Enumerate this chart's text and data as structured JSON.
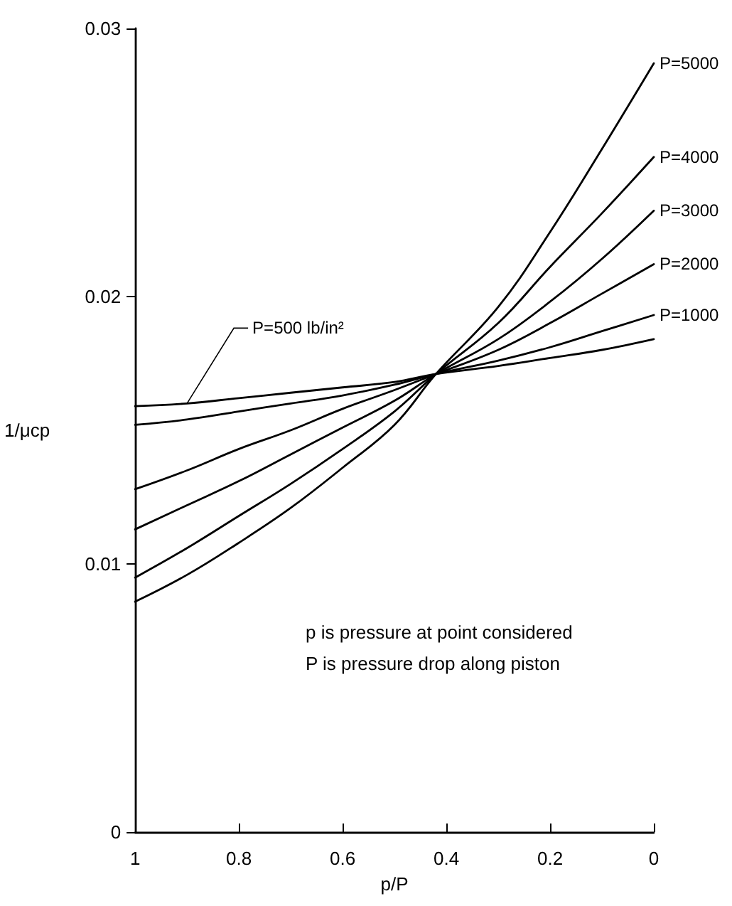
{
  "chart_data": {
    "type": "line",
    "xlabel": "p/P",
    "ylabel": "1/μcp",
    "x": [
      1,
      0.9,
      0.8,
      0.7,
      0.6,
      0.5,
      0.42,
      0.3,
      0.2,
      0.1,
      0
    ],
    "series": [
      {
        "name": "P=5000",
        "color": "#000000",
        "values": [
          0.0086,
          0.0096,
          0.0108,
          0.0121,
          0.0136,
          0.0152,
          0.0171,
          0.0196,
          0.0224,
          0.0255,
          0.0287
        ]
      },
      {
        "name": "P=4000",
        "color": "#000000",
        "values": [
          0.0095,
          0.0106,
          0.0118,
          0.013,
          0.0143,
          0.0157,
          0.0171,
          0.019,
          0.0211,
          0.0231,
          0.0252
        ]
      },
      {
        "name": "P=3000",
        "color": "#000000",
        "values": [
          0.0113,
          0.0122,
          0.0131,
          0.0141,
          0.0151,
          0.0161,
          0.0171,
          0.0184,
          0.0198,
          0.0214,
          0.0232
        ]
      },
      {
        "name": "P=2000",
        "color": "#000000",
        "values": [
          0.0128,
          0.0135,
          0.0143,
          0.015,
          0.0158,
          0.0165,
          0.0171,
          0.018,
          0.019,
          0.0201,
          0.0212
        ]
      },
      {
        "name": "P=1000",
        "color": "#000000",
        "values": [
          0.0152,
          0.0154,
          0.0157,
          0.016,
          0.0163,
          0.0167,
          0.0171,
          0.0176,
          0.0181,
          0.0187,
          0.0193
        ]
      },
      {
        "name": "P=500 lb/in²",
        "color": "#000000",
        "values": [
          0.0159,
          0.016,
          0.0162,
          0.0164,
          0.0166,
          0.0168,
          0.0171,
          0.0174,
          0.0177,
          0.018,
          0.0184
        ]
      }
    ],
    "xlim": [
      1,
      0
    ],
    "xticks": [
      {
        "value": 1,
        "label": "1"
      },
      0.8,
      0.6,
      0.4,
      0.2,
      {
        "value": 0,
        "label": "0"
      }
    ],
    "ylim": [
      0,
      0.03
    ],
    "yticks": [
      0,
      0.01,
      0.02,
      0.03
    ],
    "annotations": [
      "p is pressure at point considered",
      "P is pressure drop along piston"
    ],
    "grid": false,
    "legend": false,
    "marker": "none",
    "line_style": "solid"
  }
}
